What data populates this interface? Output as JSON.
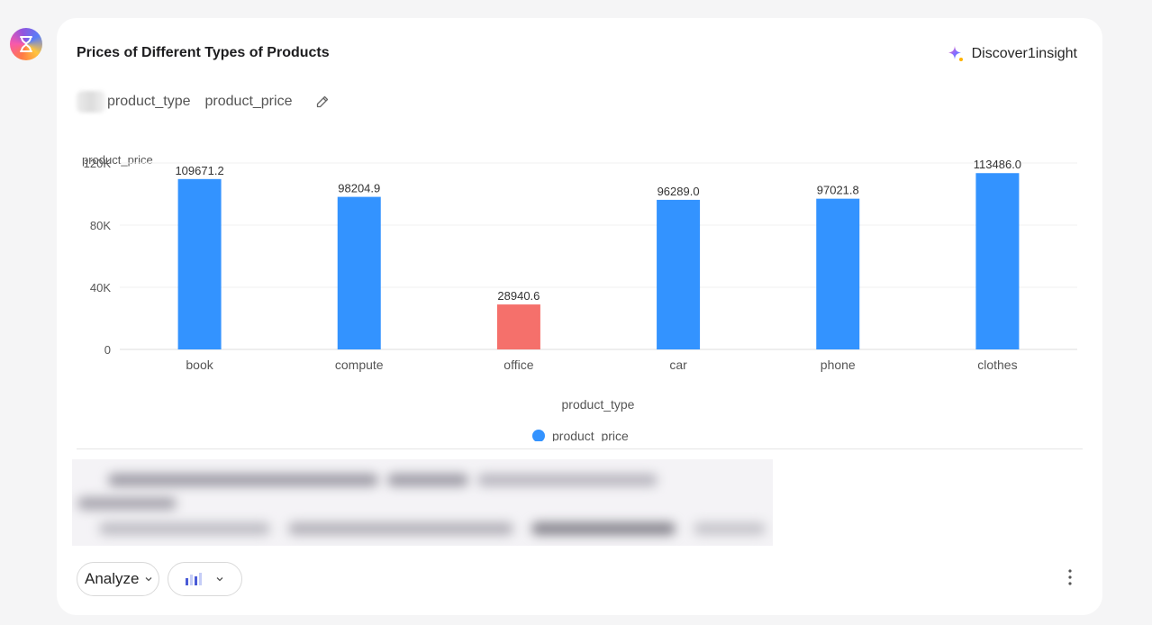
{
  "avatar": {
    "icon": "hourglass-icon"
  },
  "card": {
    "title": "Prices of Different Types of Products",
    "discover_label": "Discover1insight",
    "fields": [
      "product_type",
      "product_price"
    ]
  },
  "chart_data": {
    "type": "bar",
    "categories": [
      "book",
      "compute",
      "office",
      "car",
      "phone",
      "clothes"
    ],
    "series": [
      {
        "name": "product_price",
        "values": [
          109671.2,
          98204.9,
          28940.6,
          96289.0,
          97021.8,
          113486.0
        ],
        "value_labels": [
          "109671.2",
          "98204.9",
          "28940.6",
          "96289.0",
          "97021.8",
          "113486.0"
        ]
      }
    ],
    "highlight_category": "office",
    "colors": {
      "bar": "#3393ff",
      "highlight": "#f5706b"
    },
    "xlabel": "product_type",
    "ylabel": "product_price",
    "ylim": [
      0,
      120000
    ],
    "yticks": [
      0,
      40000,
      80000,
      120000
    ],
    "ytick_labels": [
      "0",
      "40K",
      "80K",
      "120K"
    ],
    "legend": "bottom-center",
    "grid": true
  },
  "toolbar": {
    "analyze_label": "Analyze",
    "chart_type_icon": "bar-chart-icon",
    "more_icon": "more-vertical-icon"
  }
}
